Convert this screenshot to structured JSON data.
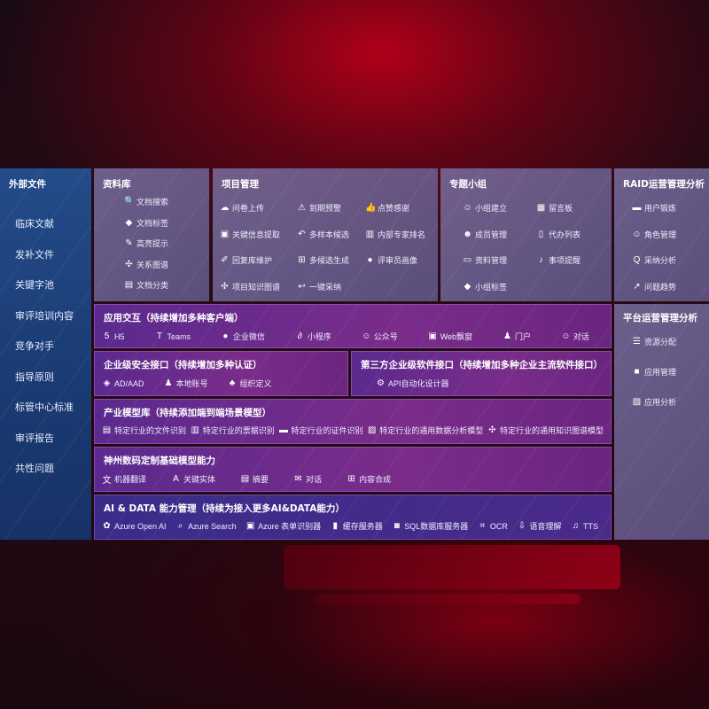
{
  "sidebar": {
    "title": "外部文件",
    "items": [
      "临床文献",
      "发补文件",
      "关键字池",
      "审评培训内容",
      "竞争对手",
      "指导原则",
      "标管中心标准",
      "审评报告",
      "共性问题"
    ]
  },
  "library": {
    "title": "资料库",
    "items": [
      {
        "label": "文档搜索",
        "icon": "doc-search-icon"
      },
      {
        "label": "文档标签",
        "icon": "tag-icon"
      },
      {
        "label": "高亮提示",
        "icon": "pen-icon"
      },
      {
        "label": "关系图谱",
        "icon": "graph-icon"
      },
      {
        "label": "文档分类",
        "icon": "doc-category-icon"
      }
    ]
  },
  "project": {
    "title": "项目管理",
    "items": [
      {
        "label": "问卷上传",
        "icon": "cloud-upload-icon"
      },
      {
        "label": "到期预警",
        "icon": "alarm-icon"
      },
      {
        "label": "点赞感谢",
        "icon": "thumbs-up-icon"
      },
      {
        "label": "关键信息提取",
        "icon": "window-icon"
      },
      {
        "label": "多样本候选",
        "icon": "reply-all-icon"
      },
      {
        "label": "内部专家排名",
        "icon": "ranking-icon"
      },
      {
        "label": "回复库维护",
        "icon": "edit-icon"
      },
      {
        "label": "多候选生成",
        "icon": "puzzle-icon"
      },
      {
        "label": "评审员画像",
        "icon": "user-icon"
      },
      {
        "label": "项目知识图谱",
        "icon": "graph-icon"
      },
      {
        "label": "一键采纳",
        "icon": "reply-icon"
      }
    ]
  },
  "group": {
    "title": "专题小组",
    "items": [
      {
        "label": "小组建立",
        "icon": "group-icon"
      },
      {
        "label": "留言板",
        "icon": "bbs-icon"
      },
      {
        "label": "成员管理",
        "icon": "user-add-icon"
      },
      {
        "label": "代办列表",
        "icon": "clipboard-icon"
      },
      {
        "label": "资料管理",
        "icon": "folder-icon"
      },
      {
        "label": "事项提醒",
        "icon": "bell-icon"
      },
      {
        "label": "小组标签",
        "icon": "tag-icon"
      }
    ]
  },
  "raid": {
    "title": "RAID运营管理分析",
    "items": [
      {
        "label": "用户锻炼",
        "icon": "id-card-icon"
      },
      {
        "label": "角色管理",
        "icon": "users-icon"
      },
      {
        "label": "采纳分析",
        "icon": "qa-icon"
      },
      {
        "label": "问题趋势",
        "icon": "trend-icon"
      }
    ]
  },
  "platform": {
    "title": "平台运营管理分析",
    "items": [
      {
        "label": "资源分配",
        "icon": "list-icon"
      },
      {
        "label": "应用管理",
        "icon": "apps-icon"
      },
      {
        "label": "应用分析",
        "icon": "chart-icon"
      }
    ]
  },
  "interaction": {
    "title": "应用交互（持续增加多种客户端）",
    "items": [
      {
        "label": "H5",
        "icon": "html5-icon"
      },
      {
        "label": "Teams",
        "icon": "teams-icon"
      },
      {
        "label": "企业微信",
        "icon": "wechat-icon"
      },
      {
        "label": "小程序",
        "icon": "miniprogram-icon"
      },
      {
        "label": "公众号",
        "icon": "users-icon"
      },
      {
        "label": "Web飘窗",
        "icon": "window-icon"
      },
      {
        "label": "门户",
        "icon": "portal-icon"
      },
      {
        "label": "对话",
        "icon": "chat-users-icon"
      }
    ]
  },
  "security": {
    "title": "企业级安全接口（持续增加多种认证）",
    "items": [
      {
        "label": "AD/AAD",
        "icon": "diamond-icon"
      },
      {
        "label": "本地账号",
        "icon": "user-lock-icon"
      },
      {
        "label": "组织定义",
        "icon": "org-icon"
      }
    ]
  },
  "thirdparty": {
    "title": "第三方企业级软件接口（持续增加多种企业主流软件接口）",
    "items": [
      {
        "label": "API自动化设计器",
        "icon": "gear-icon"
      }
    ]
  },
  "industry": {
    "title": "产业模型库（持续添加端到端场景模型）",
    "items": [
      {
        "label": "特定行业的文件识别",
        "icon": "file-icon"
      },
      {
        "label": "特定行业的票据识别",
        "icon": "receipt-icon"
      },
      {
        "label": "特定行业的证件识别",
        "icon": "id-card-icon"
      },
      {
        "label": "特定行业的通用数据分析模型",
        "icon": "image-chart-icon"
      },
      {
        "label": "特定行业的通用知识图谱模型",
        "icon": "graph-icon"
      }
    ]
  },
  "basemodel": {
    "title": "神州数码定制基础模型能力",
    "items": [
      {
        "label": "机器翻译",
        "icon": "translate-icon"
      },
      {
        "label": "关键实体",
        "icon": "entity-icon"
      },
      {
        "label": "摘要",
        "icon": "document-icon"
      },
      {
        "label": "对话",
        "icon": "chat-icon"
      },
      {
        "label": "内容合成",
        "icon": "puzzle-icon"
      }
    ]
  },
  "aidata": {
    "title": "AI & DATA 能力管理（持续为接入更多AI&DATA能力）",
    "items": [
      {
        "label": "Azure Open AI",
        "icon": "openai-icon"
      },
      {
        "label": "Azure Search",
        "icon": "search-icon"
      },
      {
        "label": "Azure 表单识别器",
        "icon": "form-icon"
      },
      {
        "label": "缓存服务器",
        "icon": "cache-icon"
      },
      {
        "label": "SQL数据库服务器",
        "icon": "database-icon"
      },
      {
        "label": "OCR",
        "icon": "ocr-icon"
      },
      {
        "label": "语音理解",
        "icon": "speech-icon"
      },
      {
        "label": "TTS",
        "icon": "tts-icon"
      }
    ]
  },
  "colors": {
    "sidebar": "#1f4480",
    "panel": "#6e65a0",
    "module": "#6a2a8c",
    "aidata": "#3f2c8a",
    "accent": "#b0001a"
  }
}
